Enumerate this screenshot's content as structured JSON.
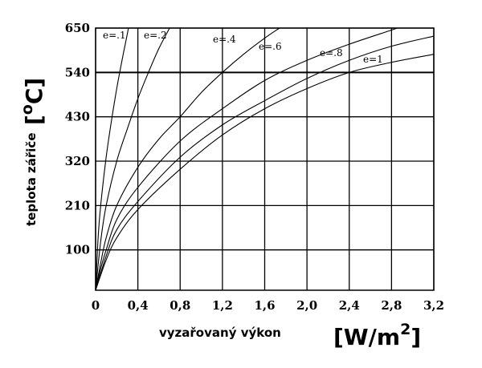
{
  "chart_data": {
    "type": "line",
    "xlabel": "vyzařovaný výkon",
    "xunit_open": "[W/m",
    "xunit_sup": "2",
    "xunit_close": "]",
    "ylabel": "teplota zářiče",
    "yunit_open": "[",
    "yunit_sup": "o",
    "yunit_close": "C]",
    "xlim": [
      0,
      3.2
    ],
    "ylim": [
      0,
      650
    ],
    "x_ticks": [
      0,
      0.4,
      0.8,
      1.2,
      1.6,
      2.0,
      2.4,
      2.8,
      3.2
    ],
    "x_tick_labels": [
      "0",
      "0,4",
      "0,8",
      "1,2",
      "1,6",
      "2,0",
      "2,4",
      "2,8",
      "3,2"
    ],
    "y_ticks": [
      100,
      210,
      320,
      430,
      540,
      650
    ],
    "y_tick_labels": [
      "100",
      "210",
      "320",
      "430",
      "540",
      "650"
    ],
    "grid": true,
    "series": [
      {
        "name": "e=.1",
        "points": [
          [
            0,
            0
          ],
          [
            0.025,
            135
          ],
          [
            0.05,
            215
          ],
          [
            0.1,
            330
          ],
          [
            0.15,
            420
          ],
          [
            0.2,
            500
          ],
          [
            0.25,
            570
          ],
          [
            0.3,
            635
          ],
          [
            0.31,
            650
          ]
        ]
      },
      {
        "name": "e=.2",
        "points": [
          [
            0,
            0
          ],
          [
            0.05,
            125
          ],
          [
            0.1,
            210
          ],
          [
            0.2,
            320
          ],
          [
            0.3,
            400
          ],
          [
            0.4,
            475
          ],
          [
            0.5,
            540
          ],
          [
            0.6,
            600
          ],
          [
            0.7,
            650
          ]
        ]
      },
      {
        "name": "e=.4",
        "points": [
          [
            0,
            0
          ],
          [
            0.05,
            70
          ],
          [
            0.1,
            130
          ],
          [
            0.2,
            210
          ],
          [
            0.4,
            305
          ],
          [
            0.6,
            375
          ],
          [
            0.8,
            430
          ],
          [
            1.0,
            490
          ],
          [
            1.2,
            540
          ],
          [
            1.4,
            585
          ],
          [
            1.6,
            625
          ],
          [
            1.74,
            650
          ]
        ]
      },
      {
        "name": "e=.6",
        "points": [
          [
            0,
            0
          ],
          [
            0.05,
            55
          ],
          [
            0.1,
            100
          ],
          [
            0.2,
            175
          ],
          [
            0.4,
            255
          ],
          [
            0.8,
            370
          ],
          [
            1.2,
            450
          ],
          [
            1.6,
            520
          ],
          [
            2.0,
            570
          ],
          [
            2.4,
            610
          ],
          [
            2.8,
            645
          ],
          [
            2.85,
            650
          ]
        ]
      },
      {
        "name": "e=.8",
        "points": [
          [
            0,
            0
          ],
          [
            0.1,
            85
          ],
          [
            0.2,
            150
          ],
          [
            0.4,
            220
          ],
          [
            0.8,
            330
          ],
          [
            1.2,
            410
          ],
          [
            1.6,
            470
          ],
          [
            2.0,
            525
          ],
          [
            2.4,
            570
          ],
          [
            2.8,
            605
          ],
          [
            3.2,
            630
          ]
        ]
      },
      {
        "name": "e=1",
        "points": [
          [
            0,
            0
          ],
          [
            0.1,
            75
          ],
          [
            0.2,
            130
          ],
          [
            0.4,
            200
          ],
          [
            0.8,
            300
          ],
          [
            1.2,
            385
          ],
          [
            1.6,
            450
          ],
          [
            2.0,
            500
          ],
          [
            2.4,
            540
          ],
          [
            2.8,
            565
          ],
          [
            3.2,
            585
          ]
        ]
      }
    ],
    "highlight_line_y": 540
  }
}
